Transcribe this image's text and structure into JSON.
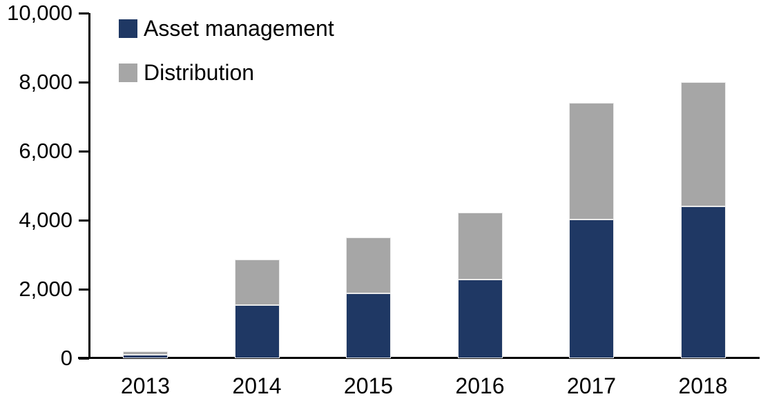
{
  "chart_data": {
    "type": "bar",
    "stacked": true,
    "title": "",
    "xlabel": "",
    "ylabel": "",
    "categories": [
      "2013",
      "2014",
      "2015",
      "2016",
      "2017",
      "2018"
    ],
    "series": [
      {
        "name": "Asset management",
        "color": "#1f3864",
        "values": [
          100,
          1550,
          1890,
          2290,
          4030,
          4400
        ]
      },
      {
        "name": "Distribution",
        "color": "#a6a6a6",
        "values": [
          100,
          1310,
          1610,
          1940,
          3370,
          3600
        ]
      }
    ],
    "stack_totals": [
      200,
      2860,
      3500,
      4230,
      7400,
      8000
    ],
    "ylim": [
      0,
      10000
    ],
    "ytick_step": 2000,
    "ytick_labels": [
      "0",
      "2,000",
      "4,000",
      "6,000",
      "8,000",
      "10,000"
    ],
    "grid": false,
    "legend_position": "top-left"
  },
  "colors": {
    "axis": "#000000",
    "background": "#ffffff",
    "asset_management": "#1f3864",
    "distribution": "#a6a6a6"
  }
}
